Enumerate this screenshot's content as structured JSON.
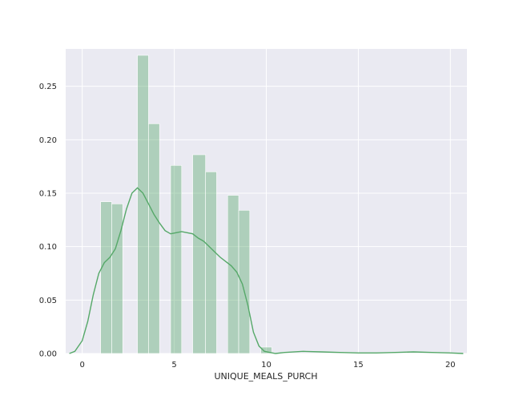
{
  "chart_data": {
    "type": "bar",
    "xlabel": "UNIQUE_MEALS_PURCH",
    "ylabel": "",
    "title": "",
    "xlim": [
      -0.9,
      20.9
    ],
    "ylim": [
      0,
      0.285
    ],
    "xticks": [
      0,
      5,
      10,
      15,
      20
    ],
    "xtick_labels": [
      "0",
      "5",
      "10",
      "15",
      "20"
    ],
    "yticks": [
      0.0,
      0.05,
      0.1,
      0.15,
      0.2,
      0.25
    ],
    "ytick_labels": [
      "0.00",
      "0.05",
      "0.10",
      "0.15",
      "0.20",
      "0.25"
    ],
    "grid": true,
    "bar_color": "#55a868",
    "line_color": "#55a868",
    "bars": [
      {
        "x0": 1.0,
        "x1": 1.6,
        "value": 0.142
      },
      {
        "x0": 1.6,
        "x1": 2.2,
        "value": 0.14
      },
      {
        "x0": 3.0,
        "x1": 3.6,
        "value": 0.279
      },
      {
        "x0": 3.6,
        "x1": 4.2,
        "value": 0.215
      },
      {
        "x0": 4.8,
        "x1": 5.4,
        "value": 0.176
      },
      {
        "x0": 6.0,
        "x1": 6.7,
        "value": 0.186
      },
      {
        "x0": 6.7,
        "x1": 7.3,
        "value": 0.17
      },
      {
        "x0": 7.9,
        "x1": 8.5,
        "value": 0.148
      },
      {
        "x0": 8.5,
        "x1": 9.1,
        "value": 0.134
      },
      {
        "x0": 9.7,
        "x1": 10.3,
        "value": 0.006
      }
    ],
    "kde": {
      "x": [
        -0.7,
        -0.4,
        0.0,
        0.3,
        0.6,
        0.9,
        1.2,
        1.5,
        1.8,
        2.1,
        2.4,
        2.7,
        3.0,
        3.3,
        3.6,
        3.9,
        4.2,
        4.5,
        4.8,
        5.1,
        5.4,
        5.7,
        6.0,
        6.3,
        6.6,
        6.9,
        7.2,
        7.5,
        7.8,
        8.1,
        8.4,
        8.7,
        9.0,
        9.3,
        9.6,
        9.9,
        10.2,
        10.5,
        11.0,
        12.0,
        13.0,
        14.0,
        15.0,
        16.0,
        17.0,
        18.0,
        19.0,
        20.0,
        20.7
      ],
      "y": [
        0.0,
        0.002,
        0.012,
        0.03,
        0.055,
        0.075,
        0.085,
        0.09,
        0.098,
        0.115,
        0.135,
        0.15,
        0.155,
        0.15,
        0.14,
        0.13,
        0.122,
        0.115,
        0.112,
        0.113,
        0.114,
        0.113,
        0.112,
        0.108,
        0.105,
        0.1,
        0.095,
        0.09,
        0.086,
        0.082,
        0.076,
        0.065,
        0.045,
        0.02,
        0.007,
        0.002,
        0.001,
        0.0,
        0.001,
        0.002,
        0.0015,
        0.001,
        0.0005,
        0.0005,
        0.001,
        0.0015,
        0.001,
        0.0005,
        0.0
      ]
    }
  }
}
